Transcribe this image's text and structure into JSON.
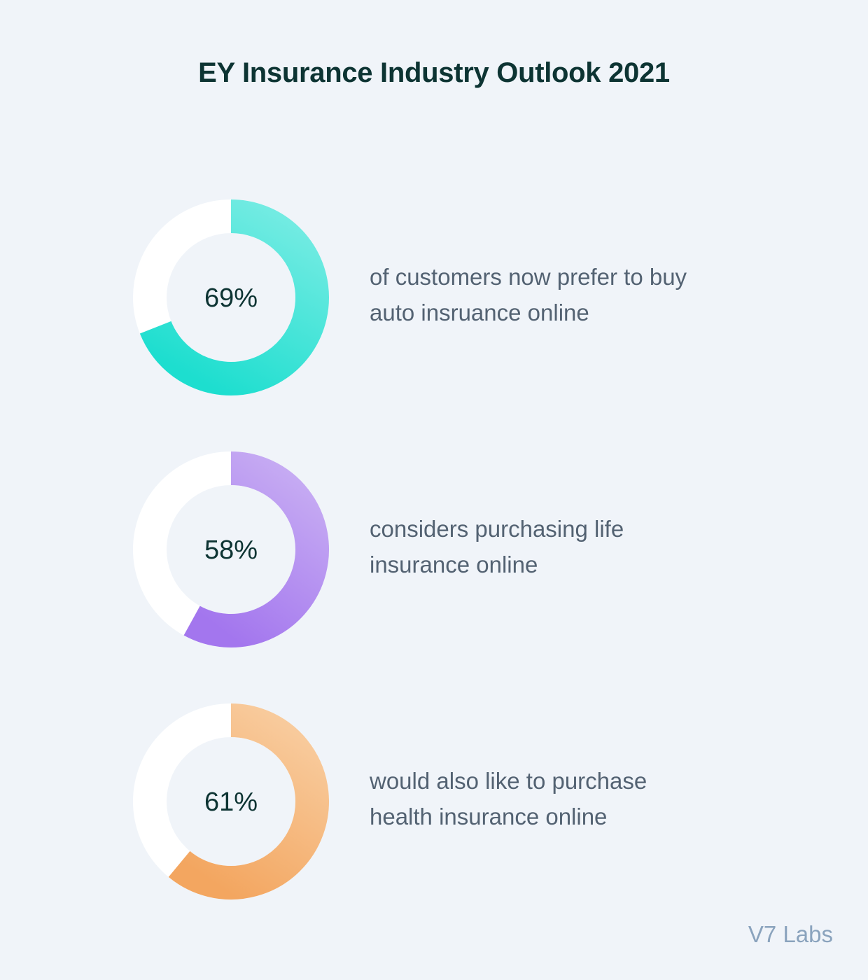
{
  "title": "EY Insurance Industry Outlook 2021",
  "footer": "V7 Labs",
  "colors": {
    "background": "#f0f4f9",
    "track": "#ffffff",
    "title": "#0d3433",
    "text": "#536272",
    "footer": "#8aa3bd"
  },
  "chart_data": [
    {
      "type": "pie",
      "value": 69,
      "label": "69%",
      "description": [
        "of customers now prefer to buy",
        "auto insruance online"
      ],
      "gradient": [
        "#72ebe2",
        "#1ddecf"
      ]
    },
    {
      "type": "pie",
      "value": 58,
      "label": "58%",
      "description": [
        "considers purchasing life",
        "insurance online"
      ],
      "gradient": [
        "#c6abf3",
        "#a376ee"
      ]
    },
    {
      "type": "pie",
      "value": 61,
      "label": "61%",
      "description": [
        "would also like to purchase",
        "health insurance online"
      ],
      "gradient": [
        "#f8cb9d",
        "#f3a660"
      ]
    }
  ]
}
